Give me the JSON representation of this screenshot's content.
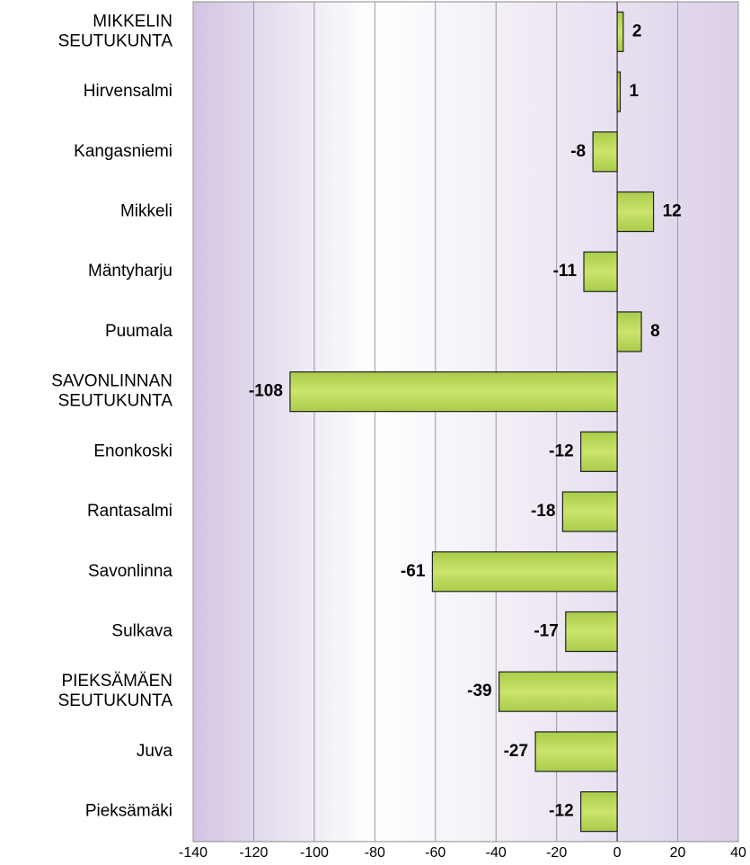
{
  "chart_data": {
    "type": "barh",
    "categories": [
      "MIKKELIN\nSEUTUKUNTA",
      "Hirvensalmi",
      "Kangasniemi",
      "Mikkeli",
      "Mäntyharju",
      "Puumala",
      "SAVONLINNAN\nSEUTUKUNTA",
      "Enonkoski",
      "Rantasalmi",
      "Savonlinna",
      "Sulkava",
      "PIEKSÄMÄEN\nSEUTUKUNTA",
      "Juva",
      "Pieksämäki"
    ],
    "values": [
      2,
      1,
      -8,
      12,
      -11,
      8,
      -108,
      -12,
      -18,
      -61,
      -17,
      -39,
      -27,
      -12
    ],
    "color": "#b9d85a",
    "xlim": [
      -140,
      40
    ],
    "xticks": [
      -140,
      -120,
      -100,
      -80,
      -60,
      -40,
      -20,
      0,
      20,
      40
    ],
    "grid": true
  }
}
